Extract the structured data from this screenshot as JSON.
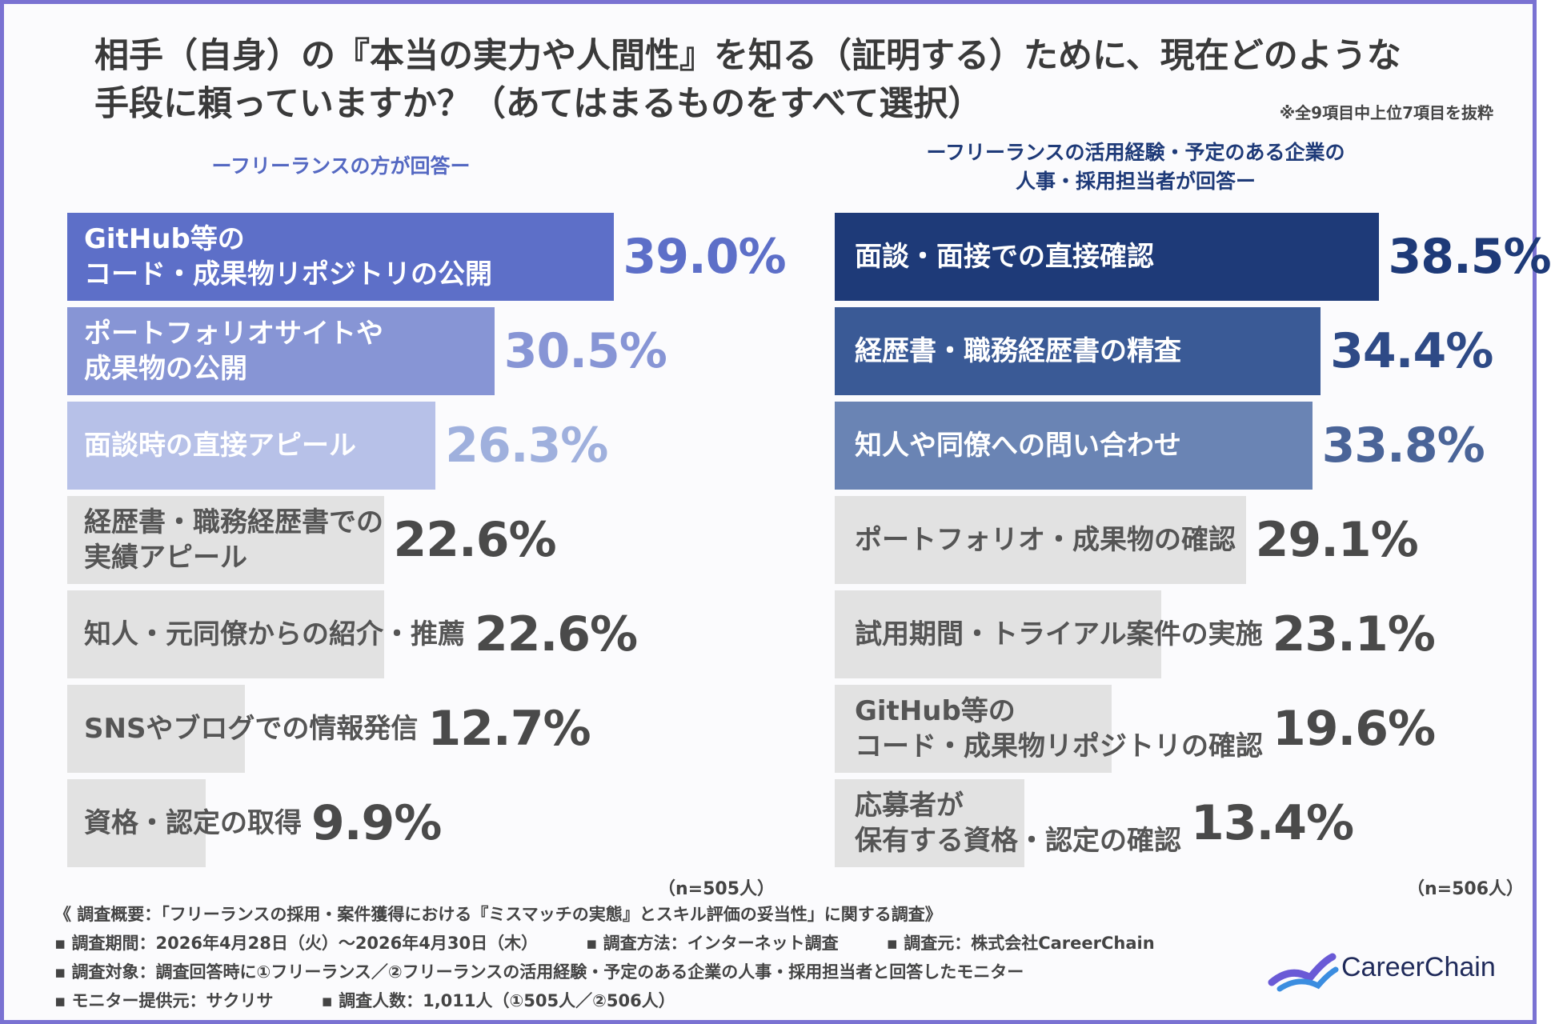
{
  "title_lines": [
    "相手（自身）の『本当の実力や人間性』を知る（証明する）ために、現在どのような",
    "手段に頼っていますか？（あてはまるものをすべて選択）"
  ],
  "note": "※全9項目中上位7項目を抜粋",
  "left_panel": {
    "heading_lines": [
      "ーフリーランスの方が回答ー"
    ],
    "n_label": "（n=505人）"
  },
  "right_panel": {
    "heading_lines": [
      "ーフリーランスの活用経験・予定のある企業の",
      "人事・採用担当者が回答ー"
    ],
    "n_label": "（n=506人）"
  },
  "chart_data": [
    {
      "type": "bar",
      "orientation": "horizontal",
      "categories": [
        [
          "GitHub等の",
          "コード・成果物リポジトリの公開"
        ],
        [
          "ポートフォリオサイトや",
          "成果物の公開"
        ],
        [
          "面談時の直接アピール"
        ],
        [
          "経歴書・職務経歴書での",
          "実績アピール"
        ],
        [
          "知人・元同僚からの紹介・推薦"
        ],
        [
          "SNSやブログでの情報発信"
        ],
        [
          "資格・認定の取得"
        ]
      ],
      "values": [
        39.0,
        30.5,
        26.3,
        22.6,
        22.6,
        12.7,
        9.9
      ],
      "value_labels": [
        "39.0%",
        "30.5%",
        "26.3%",
        "22.6%",
        "22.6%",
        "12.7%",
        "9.9%"
      ],
      "unit": "%",
      "colors": [
        "#5d6fc8",
        "#8795d5",
        "#b7c1e8",
        "#e2e2e2",
        "#e2e2e2",
        "#e2e2e2",
        "#e2e2e2"
      ],
      "label_colors": [
        "#ffffff",
        "#ffffff",
        "#ffffff",
        "#555555",
        "#555555",
        "#555555",
        "#555555"
      ],
      "value_colors": [
        "#5d6fc8",
        "#8795d5",
        "#9fb0dd",
        "#4a4a4a",
        "#4a4a4a",
        "#4a4a4a",
        "#4a4a4a"
      ]
    },
    {
      "type": "bar",
      "orientation": "horizontal",
      "categories": [
        [
          "面談・面接での直接確認"
        ],
        [
          "経歴書・職務経歴書の精査"
        ],
        [
          "知人や同僚への問い合わせ"
        ],
        [
          "ポートフォリオ・成果物の確認"
        ],
        [
          "試用期間・トライアル案件の実施"
        ],
        [
          "GitHub等の",
          "コード・成果物リポジトリの確認"
        ],
        [
          "応募者が",
          "保有する資格・認定の確認"
        ]
      ],
      "values": [
        38.5,
        34.4,
        33.8,
        29.1,
        23.1,
        19.6,
        13.4
      ],
      "value_labels": [
        "38.5%",
        "34.4%",
        "33.8%",
        "29.1%",
        "23.1%",
        "19.6%",
        "13.4%"
      ],
      "unit": "%",
      "colors": [
        "#1e3a78",
        "#3a5a96",
        "#6a84b4",
        "#e2e2e2",
        "#e2e2e2",
        "#e2e2e2",
        "#e2e2e2"
      ],
      "label_colors": [
        "#ffffff",
        "#ffffff",
        "#ffffff",
        "#555555",
        "#555555",
        "#555555",
        "#555555"
      ],
      "value_colors": [
        "#1e3a78",
        "#2e4a86",
        "#4a6498",
        "#4a4a4a",
        "#4a4a4a",
        "#4a4a4a",
        "#4a4a4a"
      ]
    }
  ],
  "footer": {
    "summary": "《 調査概要：「フリーランスの採用・案件獲得における『ミスマッチの実態』とスキル評価の妥当性」に関する調査》",
    "period": "▪ 調査期間：2026年4月28日（火）〜2026年4月30日（木）",
    "method": "▪ 調査方法：インターネット調査",
    "source": "▪ 調査元：株式会社CareerChain",
    "target": "▪ 調査対象：調査回答時に①フリーランス／②フリーランスの活用経験・予定のある企業の人事・採用担当者と回答したモニター",
    "provider": "▪ モニター提供元：サクリサ",
    "count": "▪ 調査人数：1,011人（①505人／②506人）"
  },
  "logo": {
    "text": "CareerChain",
    "colors": [
      "#6a5ad6",
      "#3b8de0"
    ]
  }
}
